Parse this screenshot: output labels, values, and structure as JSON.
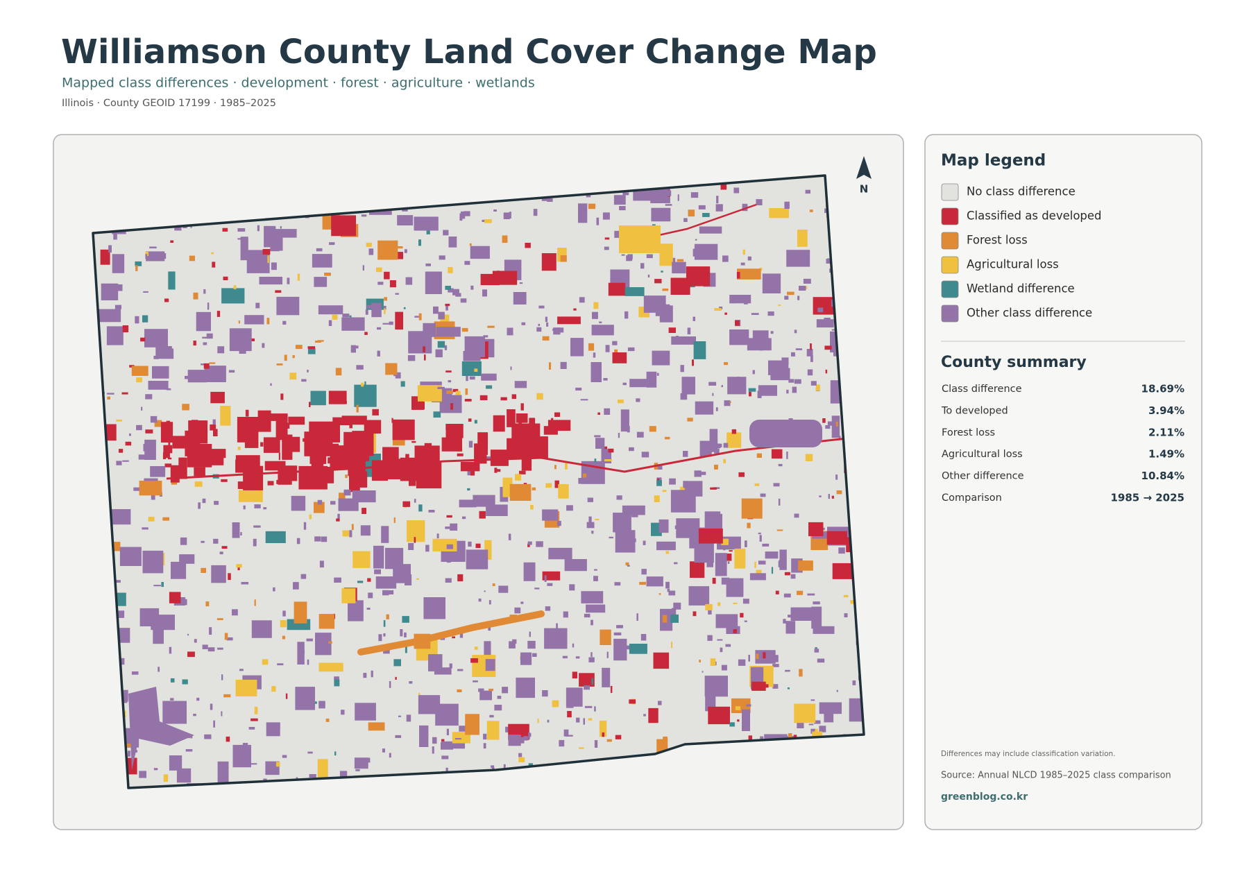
{
  "header": {
    "title": "Williamson County Land Cover Change Map",
    "subtitle": "Mapped class differences · development · forest · agriculture · wetlands",
    "meta": "Illinois · County GEOID 17199 · 1985–2025"
  },
  "map": {
    "north_label": "N"
  },
  "legend": {
    "title": "Map legend",
    "items": [
      {
        "label": "No class difference",
        "color": "#e2e2de"
      },
      {
        "label": "Classified as developed",
        "color": "#c8283a"
      },
      {
        "label": "Forest loss",
        "color": "#e08a35"
      },
      {
        "label": "Agricultural loss",
        "color": "#f0c040"
      },
      {
        "label": "Wetland difference",
        "color": "#3f8a8f"
      },
      {
        "label": "Other class difference",
        "color": "#9474a8"
      }
    ]
  },
  "summary": {
    "title": "County summary",
    "rows": [
      [
        "Class difference",
        "18.69%"
      ],
      [
        "To developed",
        "3.94%"
      ],
      [
        "Forest loss",
        "2.11%"
      ],
      [
        "Agricultural loss",
        "1.49%"
      ],
      [
        "Other difference",
        "10.84%"
      ],
      [
        "Comparison",
        "1985 → 2025"
      ]
    ]
  },
  "footer": {
    "note": "Differences may include classification variation.",
    "source": "Source: Annual NLCD 1985–2025 class comparison",
    "site": "greenblog.co.kr"
  }
}
